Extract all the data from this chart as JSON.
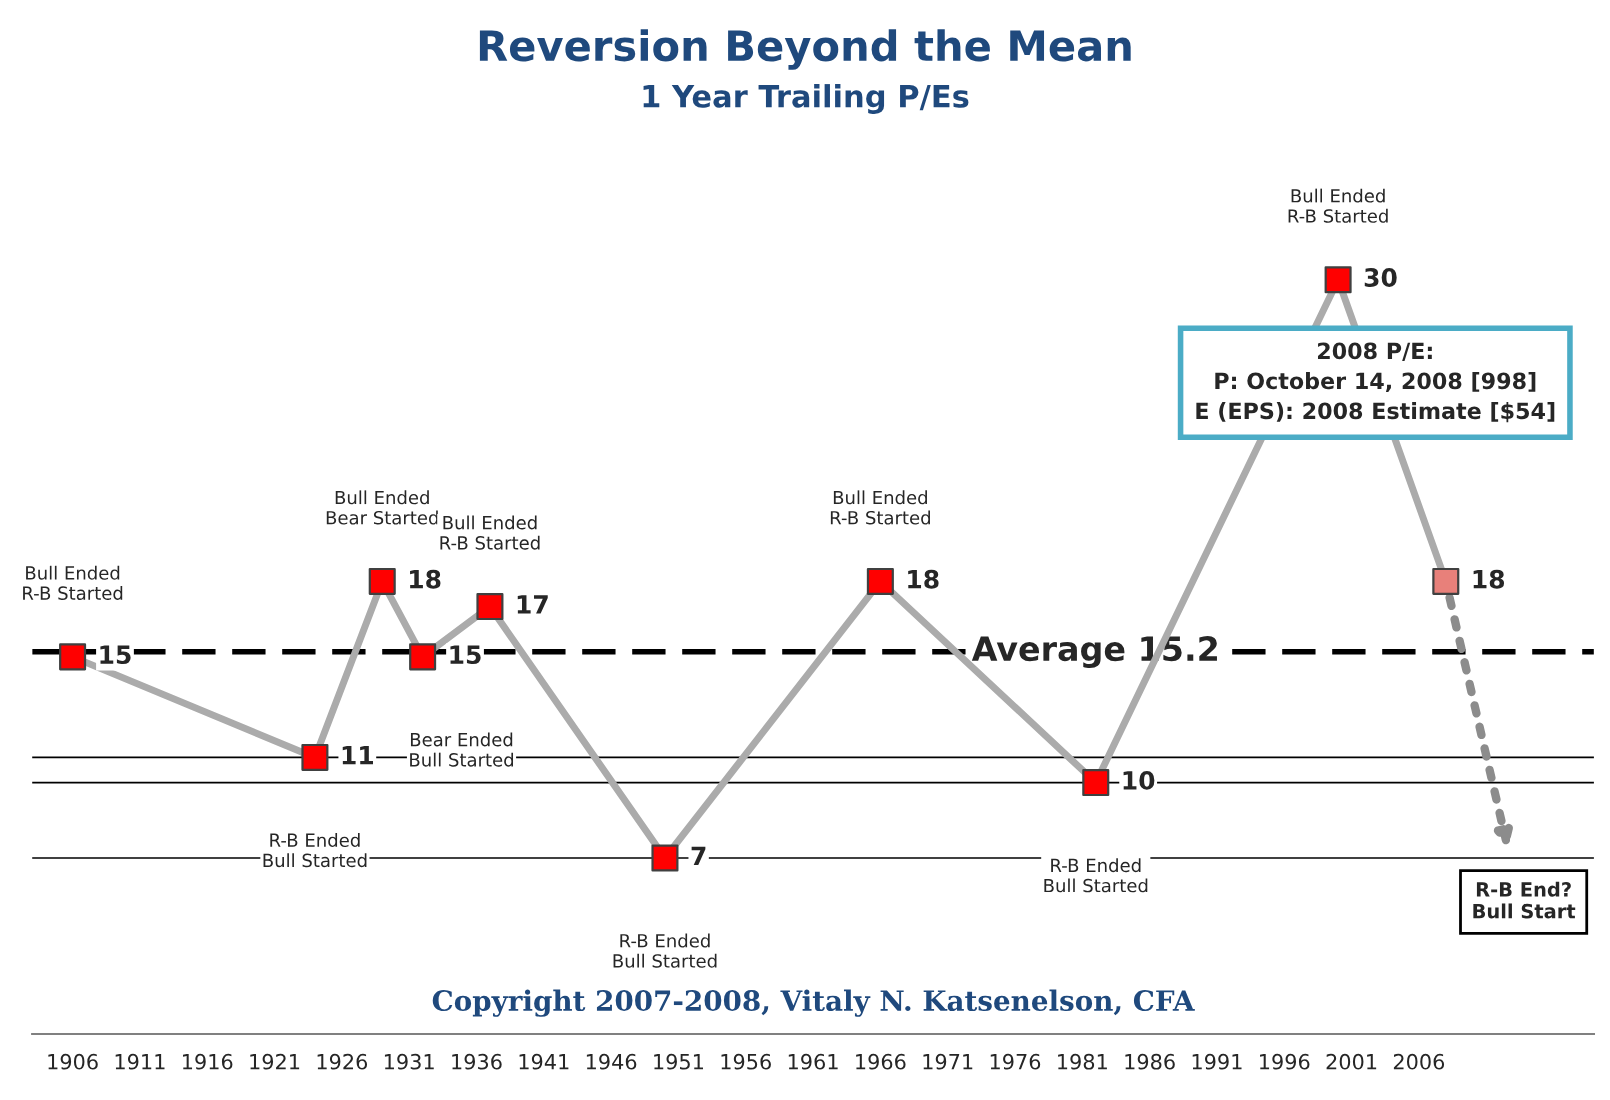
{
  "chart_data": {
    "type": "line",
    "title": "Reversion Beyond the Mean",
    "subtitle": "1 Year Trailing P/Es",
    "x": [
      1906,
      1924,
      1929,
      1932,
      1937,
      1950,
      1966,
      1982,
      2000,
      2008
    ],
    "series": [
      {
        "color": "#ababab",
        "values": [
          15,
          11,
          18,
          15,
          17,
          7,
          18,
          10,
          30,
          18
        ],
        "colors": [
          "#ff0000",
          "#ff0000",
          "#ff0000",
          "#ff0000",
          "#ff0000",
          "#ff0000",
          "#ff0000",
          "#ff0000",
          "#ff0000",
          "#e8807a"
        ]
      }
    ],
    "marker": "square",
    "data_labels": true,
    "tick_labels": "x",
    "grid": false,
    "xlim": [
      1903,
      2019
    ],
    "xticks": [
      1906,
      1911,
      1916,
      1921,
      1926,
      1931,
      1936,
      1941,
      1946,
      1951,
      1956,
      1961,
      1966,
      1971,
      1976,
      1981,
      1986,
      1991,
      1996,
      2001,
      2006
    ],
    "ref_lines": [
      {
        "axis": "y",
        "value": 15.2,
        "label": "Average 15.2",
        "line_style": "dashed",
        "color": "#000000"
      },
      {
        "axis": "y",
        "value": 11,
        "line_style": "solid",
        "color": "#000000"
      },
      {
        "axis": "y",
        "value": 10,
        "line_style": "solid",
        "color": "#000000"
      },
      {
        "axis": "y",
        "value": 7,
        "line_style": "solid",
        "color": "#000000"
      }
    ],
    "annotations": [
      "Bull Ended\nR-B Started",
      "R-B Ended\nBull Started",
      "Bull Ended\nBear Started",
      "Bear Ended\nBull Started",
      "Bull Ended\nR-B Started",
      "R-B Ended\nBull Started",
      "Bull Ended\nR-B Started",
      "R-B Ended\nBull Started",
      "Bull Ended\nR-B Started",
      "2008 P/E:\nP: October 14, 2008 [998]\nE (EPS): 2008 Estimate [$54]",
      "R-B End?\nBull Start",
      "Copyright 2007-2008, Vitaly N. Katsenelson, CFA"
    ]
  }
}
